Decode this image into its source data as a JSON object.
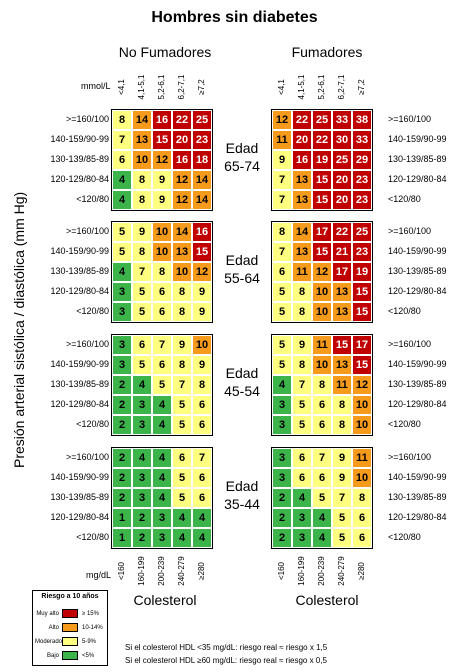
{
  "title": "Hombres sin diabetes",
  "nonsmokers_label": "No Fumadores",
  "smokers_label": "Fumadores",
  "chol_mmol_unit": "mmol/L",
  "chol_mgdl_unit": "mg/dL",
  "chol_mmol_ticks": [
    "<4,1",
    "4,1-5,1",
    "5,2-6,1",
    "6,2-7,1",
    "≥7,2"
  ],
  "chol_mgdl_ticks": [
    "<160",
    "160-199",
    "200-239",
    "240-279",
    "≥280"
  ],
  "bp_ticks": [
    ">=160/100",
    "140-159/90-99",
    "130-139/85-89",
    "120-129/80-84",
    "<120/80"
  ],
  "y_axis_label": "Presión arterial sistólica / diastólica (mm Hg)",
  "x_axis_label": "Colesterol",
  "colors": {
    "very_high": "#c00000",
    "high": "#f59a1b",
    "moderate": "#ffff80",
    "low": "#3cb44a"
  },
  "chart_data": {
    "type": "heatmap",
    "title": "Hombres sin diabetes",
    "x_labels_mmol": [
      "<4,1",
      "4,1-5,1",
      "5,2-6,1",
      "6,2-7,1",
      "≥7,2"
    ],
    "x_labels_mgdl": [
      "<160",
      "160-199",
      "200-239",
      "240-279",
      "≥280"
    ],
    "y_labels": [
      ">=160/100",
      "140-159/90-99",
      "130-139/85-89",
      "120-129/80-84",
      "<120/80"
    ],
    "xlabel": "Colesterol",
    "ylabel": "Presión arterial sistólica / diastólica (mm Hg)",
    "panels": [
      {
        "age": "65-74",
        "nonsmoker": [
          [
            8,
            14,
            16,
            22,
            25
          ],
          [
            7,
            13,
            15,
            20,
            23
          ],
          [
            6,
            10,
            12,
            16,
            18
          ],
          [
            4,
            8,
            9,
            12,
            14
          ],
          [
            4,
            8,
            9,
            12,
            14
          ]
        ],
        "smoker": [
          [
            12,
            22,
            25,
            33,
            38
          ],
          [
            11,
            20,
            22,
            30,
            33
          ],
          [
            9,
            16,
            19,
            25,
            29
          ],
          [
            7,
            13,
            15,
            20,
            23
          ],
          [
            7,
            13,
            15,
            20,
            23
          ]
        ]
      },
      {
        "age": "55-64",
        "nonsmoker": [
          [
            5,
            9,
            10,
            14,
            16
          ],
          [
            5,
            8,
            10,
            13,
            15
          ],
          [
            4,
            7,
            8,
            10,
            12
          ],
          [
            3,
            5,
            6,
            8,
            9
          ],
          [
            3,
            5,
            6,
            8,
            9
          ]
        ],
        "smoker": [
          [
            8,
            14,
            17,
            22,
            25
          ],
          [
            7,
            13,
            15,
            21,
            23
          ],
          [
            6,
            11,
            12,
            17,
            19
          ],
          [
            5,
            8,
            10,
            13,
            15
          ],
          [
            5,
            8,
            10,
            13,
            15
          ]
        ]
      },
      {
        "age": "45-54",
        "nonsmoker": [
          [
            3,
            6,
            7,
            9,
            10
          ],
          [
            3,
            5,
            6,
            8,
            9
          ],
          [
            2,
            4,
            5,
            7,
            8
          ],
          [
            2,
            3,
            4,
            5,
            6
          ],
          [
            2,
            3,
            4,
            5,
            6
          ]
        ],
        "smoker": [
          [
            5,
            9,
            11,
            15,
            17
          ],
          [
            5,
            8,
            10,
            13,
            15
          ],
          [
            4,
            7,
            8,
            11,
            12
          ],
          [
            3,
            5,
            6,
            8,
            10
          ],
          [
            3,
            5,
            6,
            8,
            10
          ]
        ]
      },
      {
        "age": "35-44",
        "nonsmoker": [
          [
            2,
            4,
            4,
            6,
            7
          ],
          [
            2,
            3,
            4,
            5,
            6
          ],
          [
            2,
            3,
            4,
            5,
            6
          ],
          [
            1,
            2,
            3,
            4,
            4
          ],
          [
            1,
            2,
            3,
            4,
            4
          ]
        ],
        "smoker": [
          [
            3,
            6,
            7,
            9,
            11
          ],
          [
            3,
            6,
            6,
            9,
            10
          ],
          [
            2,
            4,
            5,
            7,
            8
          ],
          [
            2,
            3,
            4,
            5,
            6
          ],
          [
            2,
            3,
            4,
            5,
            6
          ]
        ]
      }
    ],
    "risk_thresholds": {
      "very_high_min": 15,
      "high_min": 10,
      "moderate_min": 5
    }
  },
  "age_prefix": "Edad",
  "legend": {
    "title": "Riesgo a 10 años",
    "items": [
      {
        "name": "Muy alto",
        "range": "≥ 15%",
        "color_key": "very_high"
      },
      {
        "name": "Alto",
        "range": "10-14%",
        "color_key": "high"
      },
      {
        "name": "Moderado",
        "range": "5-9%",
        "color_key": "moderate"
      },
      {
        "name": "Bajo",
        "range": "<5%",
        "color_key": "low"
      }
    ]
  },
  "notes": [
    "Si el colesterol HDL <35 mg/dL: riesgo real ≈ riesgo x 1,5",
    "Si el colesterol HDL ≥60 mg/dL: riesgo real ≈ riesgo x 0,5"
  ]
}
